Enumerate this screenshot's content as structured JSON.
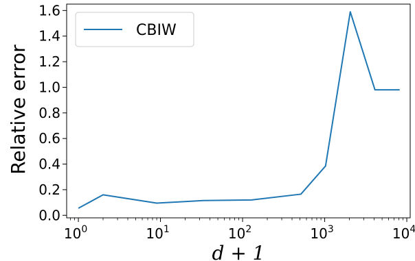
{
  "chart_data": {
    "type": "line",
    "xscale": "log",
    "xlabel": "d + 1",
    "ylabel": "Relative error",
    "xlim": [
      0.72,
      11000
    ],
    "ylim": [
      -0.02,
      1.65
    ],
    "xticks": [
      {
        "value": 1,
        "base": "10",
        "exp": "0"
      },
      {
        "value": 10,
        "base": "10",
        "exp": "1"
      },
      {
        "value": 100,
        "base": "10",
        "exp": "2"
      },
      {
        "value": 1000,
        "base": "10",
        "exp": "3"
      },
      {
        "value": 10000,
        "base": "10",
        "exp": "4"
      }
    ],
    "yticks": [
      {
        "value": 0.0,
        "label": "0.0"
      },
      {
        "value": 0.2,
        "label": "0.2"
      },
      {
        "value": 0.4,
        "label": "0.4"
      },
      {
        "value": 0.6,
        "label": "0.6"
      },
      {
        "value": 0.8,
        "label": "0.8"
      },
      {
        "value": 1.0,
        "label": "1.0"
      },
      {
        "value": 1.2,
        "label": "1.2"
      },
      {
        "value": 1.4,
        "label": "1.4"
      },
      {
        "value": 1.6,
        "label": "1.6"
      }
    ],
    "grid": false,
    "legend": "upper-left",
    "series": [
      {
        "name": "CBIW",
        "color": "#1f77b4",
        "x": [
          1,
          2,
          9,
          33,
          129,
          513,
          1025,
          2049,
          4097,
          8193
        ],
        "y": [
          0.055,
          0.16,
          0.095,
          0.115,
          0.12,
          0.165,
          0.385,
          1.59,
          0.98,
          0.98
        ]
      }
    ]
  }
}
